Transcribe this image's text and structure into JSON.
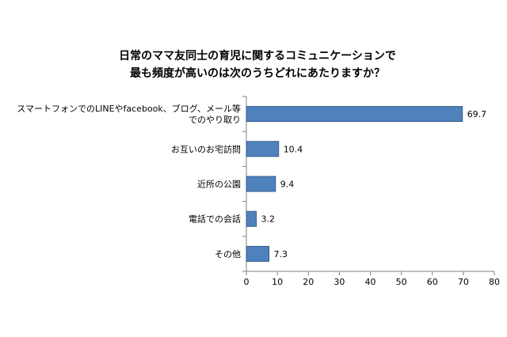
{
  "chart_data": {
    "type": "bar",
    "orientation": "horizontal",
    "title_lines": [
      "日常のママ友同士の育児に関するコミュニケーションで",
      "最も頻度が高いのは次のうちどれにあたりますか？"
    ],
    "categories": [
      [
        "スマートフォンでのLINEやfacebook、ブログ、メール等",
        "でのやり取り"
      ],
      [
        "お互いのお宅訪問"
      ],
      [
        "近所の公園"
      ],
      [
        "電話での会話"
      ],
      [
        "その他"
      ]
    ],
    "values": [
      69.7,
      10.4,
      9.4,
      3.2,
      7.3
    ],
    "value_labels": [
      "69.7",
      "10.4",
      "9.4",
      "3.2",
      "7.3"
    ],
    "xlim": [
      0,
      80
    ],
    "x_ticks": [
      "0",
      "10",
      "20",
      "30",
      "40",
      "50",
      "60",
      "70",
      "80"
    ],
    "grid": false,
    "legend": "none",
    "colors": {
      "bar": "#4f81bd",
      "bar_edge": "#385d8a",
      "axis": "#808080"
    }
  }
}
